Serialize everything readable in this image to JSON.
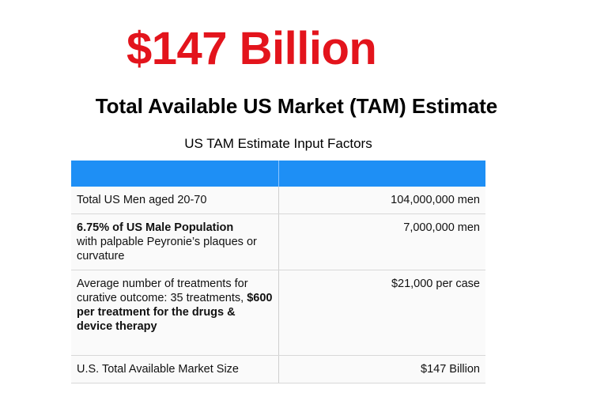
{
  "header": {
    "title": "$147 Billion",
    "subtitle": "Total Available US Market (TAM) Estimate"
  },
  "table": {
    "caption": "US TAM Estimate Input Factors",
    "rows": [
      {
        "label": [
          {
            "text": "Total US Men aged 20-70",
            "bold": false
          }
        ],
        "value": "104,000,000 men"
      },
      {
        "label": [
          {
            "text": "6.75% of US Male Population",
            "bold": true
          },
          {
            "text": "with palpable Peyronie’s plaques or curvature",
            "bold": false
          }
        ],
        "value": "7,000,000 men"
      },
      {
        "label": [
          {
            "text": "Average number of treatments for curative outcome: 35 treatments,",
            "bold": false
          },
          {
            "text": "$600 per treatment for the drugs & device therapy",
            "bold": true
          }
        ],
        "value": "$21,000 per case"
      },
      {
        "label": [
          {
            "text": "U.S. Total Available Market Size",
            "bold": false
          }
        ],
        "value": "$147 Billion"
      }
    ]
  }
}
